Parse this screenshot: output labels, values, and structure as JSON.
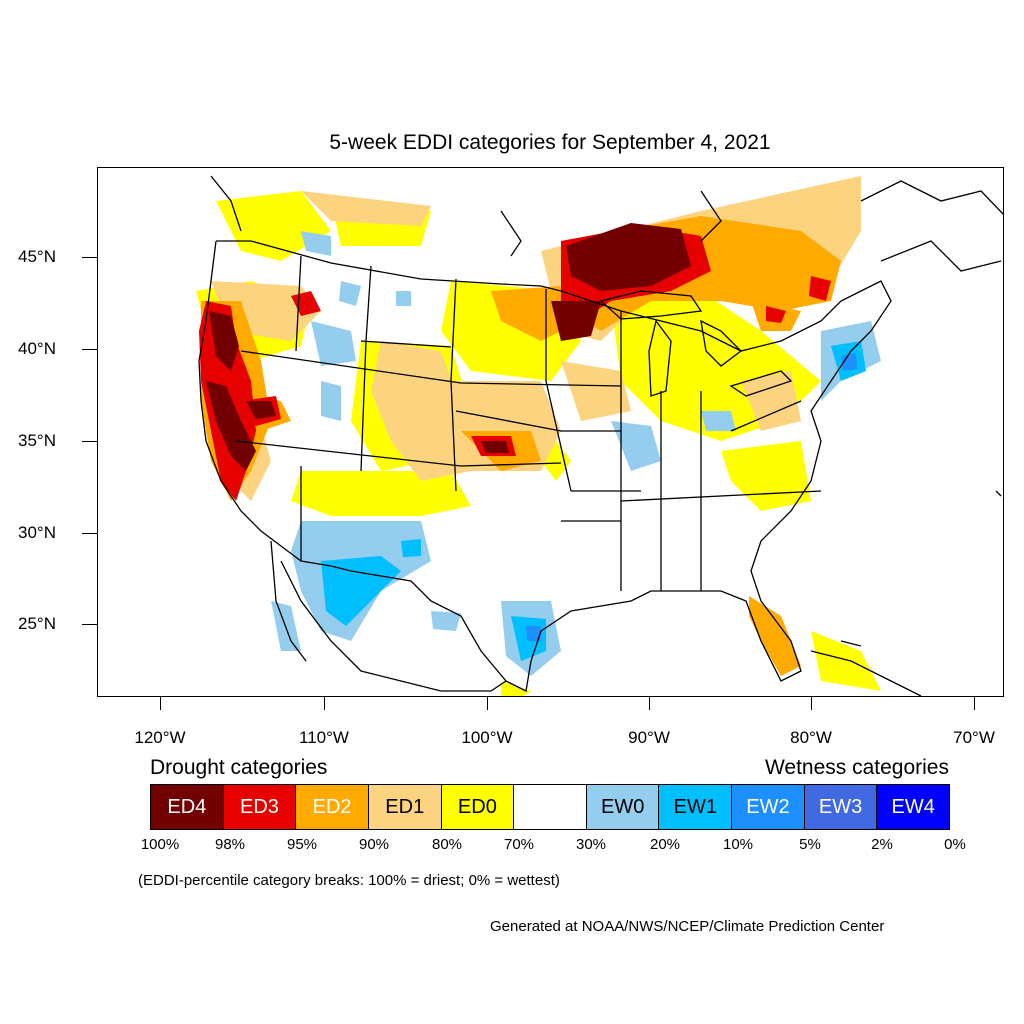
{
  "title": "5-week EDDI categories for September 4, 2021",
  "lat_labels": [
    "45°N",
    "40°N",
    "35°N",
    "30°N",
    "25°N"
  ],
  "lon_labels": [
    "120°W",
    "110°W",
    "100°W",
    "90°W",
    "80°W",
    "70°W"
  ],
  "legend": {
    "drought_heading": "Drought categories",
    "wetness_heading": "Wetness categories",
    "categories": [
      {
        "label": "ED4",
        "color": "#730000",
        "text_color": "#ffffff"
      },
      {
        "label": "ED3",
        "color": "#e60000",
        "text_color": "#ffffff"
      },
      {
        "label": "ED2",
        "color": "#ffaa00",
        "text_color": "#ffffff"
      },
      {
        "label": "ED1",
        "color": "#fcd37f",
        "text_color": "#000000"
      },
      {
        "label": "ED0",
        "color": "#ffff00",
        "text_color": "#000000"
      },
      {
        "label": "",
        "color": "#ffffff",
        "text_color": "#000000"
      },
      {
        "label": "EW0",
        "color": "#94cdee",
        "text_color": "#000000"
      },
      {
        "label": "EW1",
        "color": "#00bfff",
        "text_color": "#000000"
      },
      {
        "label": "EW2",
        "color": "#1e8fff",
        "text_color": "#ffffff"
      },
      {
        "label": "EW3",
        "color": "#4169e1",
        "text_color": "#ffffff"
      },
      {
        "label": "EW4",
        "color": "#0000ff",
        "text_color": "#ffffff"
      }
    ],
    "percentiles": [
      "100%",
      "98%",
      "95%",
      "90%",
      "80%",
      "70%",
      "30%",
      "20%",
      "10%",
      "5%",
      "2%",
      "0%"
    ]
  },
  "note": "(EDDI-percentile category breaks: 100% = driest; 0% = wettest)",
  "credit": "Generated at NOAA/NWS/NCEP/Climate Prediction Center"
}
